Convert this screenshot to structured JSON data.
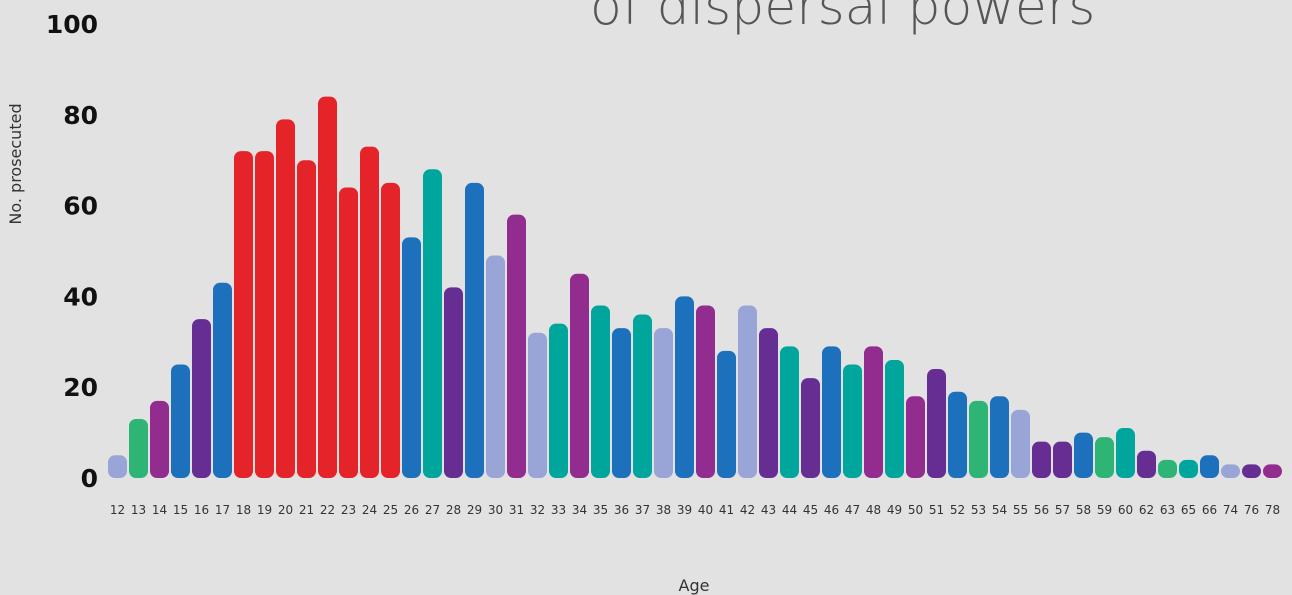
{
  "chart_data": {
    "type": "bar",
    "title": "of dispersal powers",
    "xlabel": "Age",
    "ylabel": "No. prosecuted",
    "ylim": [
      0,
      100
    ],
    "yticks": [
      "0",
      "20",
      "40",
      "60",
      "80",
      "100"
    ],
    "grid": false,
    "legend": "none",
    "categories": [
      "12",
      "13",
      "14",
      "15",
      "16",
      "17",
      "18",
      "19",
      "20",
      "21",
      "22",
      "23",
      "24",
      "25",
      "26",
      "27",
      "28",
      "29",
      "30",
      "31",
      "32",
      "33",
      "34",
      "35",
      "36",
      "37",
      "38",
      "39",
      "40",
      "41",
      "42",
      "43",
      "44",
      "45",
      "46",
      "47",
      "48",
      "49",
      "50",
      "51",
      "52",
      "53",
      "54",
      "55",
      "56",
      "57",
      "58",
      "59",
      "60",
      "62",
      "63",
      "65",
      "66",
      "74",
      "76",
      "78"
    ],
    "values": [
      5,
      13,
      17,
      25,
      35,
      43,
      72,
      72,
      79,
      70,
      84,
      64,
      73,
      65,
      53,
      68,
      42,
      65,
      49,
      58,
      32,
      34,
      45,
      38,
      33,
      36,
      33,
      40,
      38,
      28,
      38,
      33,
      29,
      22,
      29,
      25,
      29,
      26,
      18,
      24,
      19,
      17,
      18,
      15,
      8,
      8,
      10,
      9,
      11,
      6,
      4,
      4,
      5,
      3,
      3,
      3
    ],
    "colors": [
      "#98a5d6",
      "#2eb475",
      "#922c8f",
      "#1d71bc",
      "#662d92",
      "#1d71bc",
      "#e52429",
      "#e52429",
      "#e52429",
      "#e52429",
      "#e52429",
      "#e52429",
      "#e52429",
      "#e52429",
      "#1d71bc",
      "#00a59b",
      "#662d92",
      "#1d71bc",
      "#98a5d6",
      "#922c8f",
      "#98a5d6",
      "#00a59b",
      "#922c8f",
      "#00a59b",
      "#1d71bc",
      "#00a59b",
      "#98a5d6",
      "#1d71bc",
      "#922c8f",
      "#1d71bc",
      "#98a5d6",
      "#662d92",
      "#00a59b",
      "#662d92",
      "#1d71bc",
      "#00a59b",
      "#922c8f",
      "#00a59b",
      "#922c8f",
      "#662d92",
      "#1d71bc",
      "#2eb475",
      "#1d71bc",
      "#98a5d6",
      "#662d92",
      "#662d92",
      "#1d71bc",
      "#2eb475",
      "#00a59b",
      "#662d92",
      "#2eb475",
      "#00a59b",
      "#1d71bc",
      "#98a5d6",
      "#662d92",
      "#922c8f"
    ]
  }
}
